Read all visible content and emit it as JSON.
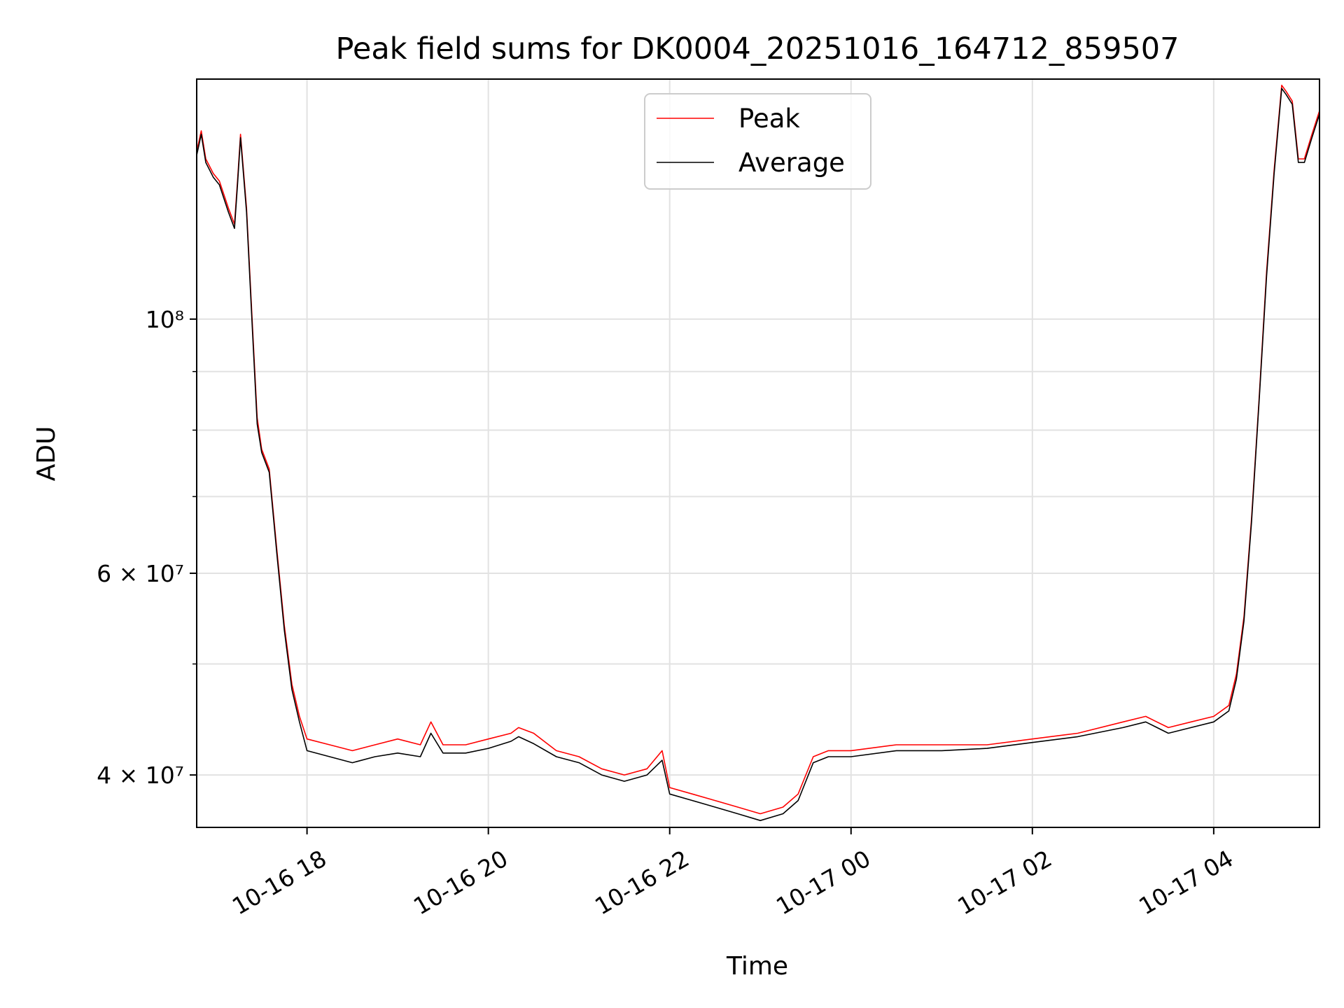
{
  "chart_data": {
    "type": "line",
    "title": "Peak field sums for DK0004_20251016_164712_859507",
    "xlabel": "Time",
    "ylabel": "ADU",
    "x_axis": {
      "type": "datetime",
      "range": [
        "2025-10-16 16:47",
        "2025-10-17 05:10"
      ],
      "ticks": [
        {
          "value": "2025-10-16 18:00",
          "label": "10-16 18"
        },
        {
          "value": "2025-10-16 20:00",
          "label": "10-16 20"
        },
        {
          "value": "2025-10-16 22:00",
          "label": "10-16 22"
        },
        {
          "value": "2025-10-17 00:00",
          "label": "10-17 00"
        },
        {
          "value": "2025-10-17 02:00",
          "label": "10-17 02"
        },
        {
          "value": "2025-10-17 04:00",
          "label": "10-17 04"
        }
      ]
    },
    "y_axis": {
      "scale": "log",
      "range": [
        36000000,
        162000000
      ],
      "ticks": [
        {
          "value": 40000000,
          "label": "4 × 10⁷"
        },
        {
          "value": 60000000,
          "label": "6 × 10⁷"
        },
        {
          "value": 100000000,
          "label": "10⁸"
        }
      ],
      "minor_ticks": [
        50000000,
        70000000,
        80000000,
        90000000
      ]
    },
    "grid": true,
    "legend": {
      "placement": "upper center"
    },
    "series": [
      {
        "name": "Peak",
        "color": "#ff0000",
        "x": [
          "2025-10-16 16:47",
          "2025-10-16 16:50",
          "2025-10-16 16:53",
          "2025-10-16 16:58",
          "2025-10-16 17:02",
          "2025-10-16 17:08",
          "2025-10-16 17:12",
          "2025-10-16 17:14",
          "2025-10-16 17:16",
          "2025-10-16 17:20",
          "2025-10-16 17:24",
          "2025-10-16 17:27",
          "2025-10-16 17:30",
          "2025-10-16 17:35",
          "2025-10-16 17:40",
          "2025-10-16 17:45",
          "2025-10-16 17:50",
          "2025-10-16 17:55",
          "2025-10-16 18:00",
          "2025-10-16 18:15",
          "2025-10-16 18:30",
          "2025-10-16 18:45",
          "2025-10-16 19:00",
          "2025-10-16 19:15",
          "2025-10-16 19:22",
          "2025-10-16 19:30",
          "2025-10-16 19:45",
          "2025-10-16 20:00",
          "2025-10-16 20:15",
          "2025-10-16 20:20",
          "2025-10-16 20:30",
          "2025-10-16 20:45",
          "2025-10-16 21:00",
          "2025-10-16 21:15",
          "2025-10-16 21:30",
          "2025-10-16 21:45",
          "2025-10-16 21:55",
          "2025-10-16 22:00",
          "2025-10-16 22:15",
          "2025-10-16 22:30",
          "2025-10-16 22:45",
          "2025-10-16 23:00",
          "2025-10-16 23:15",
          "2025-10-16 23:25",
          "2025-10-16 23:35",
          "2025-10-16 23:45",
          "2025-10-17 00:00",
          "2025-10-17 00:30",
          "2025-10-17 01:00",
          "2025-10-17 01:30",
          "2025-10-17 02:00",
          "2025-10-17 02:30",
          "2025-10-17 03:00",
          "2025-10-17 03:15",
          "2025-10-17 03:30",
          "2025-10-17 03:45",
          "2025-10-17 04:00",
          "2025-10-17 04:10",
          "2025-10-17 04:15",
          "2025-10-17 04:20",
          "2025-10-17 04:25",
          "2025-10-17 04:30",
          "2025-10-17 04:35",
          "2025-10-17 04:40",
          "2025-10-17 04:45",
          "2025-10-17 04:48",
          "2025-10-17 04:52",
          "2025-10-17 04:56",
          "2025-10-17 05:00",
          "2025-10-17 05:05",
          "2025-10-17 05:10"
        ],
        "y": [
          140000000,
          146000000,
          138000000,
          134000000,
          132000000,
          125000000,
          121000000,
          132000000,
          145000000,
          125000000,
          98000000,
          82000000,
          77000000,
          74000000,
          63000000,
          54000000,
          48000000,
          45000000,
          43000000,
          42500000,
          42000000,
          42500000,
          43000000,
          42500000,
          44500000,
          42500000,
          42500000,
          43000000,
          43500000,
          44000000,
          43500000,
          42000000,
          41500000,
          40500000,
          40000000,
          40500000,
          42000000,
          39000000,
          38500000,
          38000000,
          37500000,
          37000000,
          37500000,
          38500000,
          41500000,
          42000000,
          42000000,
          42500000,
          42500000,
          42500000,
          43000000,
          43500000,
          44500000,
          45000000,
          44000000,
          44500000,
          45000000,
          46000000,
          49000000,
          55000000,
          67000000,
          85000000,
          110000000,
          135000000,
          160000000,
          158000000,
          155000000,
          138000000,
          138000000,
          145000000,
          152000000
        ]
      },
      {
        "name": "Average",
        "color": "#000000",
        "x": [
          "2025-10-16 16:47",
          "2025-10-16 16:50",
          "2025-10-16 16:53",
          "2025-10-16 16:58",
          "2025-10-16 17:02",
          "2025-10-16 17:08",
          "2025-10-16 17:12",
          "2025-10-16 17:14",
          "2025-10-16 17:16",
          "2025-10-16 17:20",
          "2025-10-16 17:24",
          "2025-10-16 17:27",
          "2025-10-16 17:30",
          "2025-10-16 17:35",
          "2025-10-16 17:40",
          "2025-10-16 17:45",
          "2025-10-16 17:50",
          "2025-10-16 17:55",
          "2025-10-16 18:00",
          "2025-10-16 18:15",
          "2025-10-16 18:30",
          "2025-10-16 18:45",
          "2025-10-16 19:00",
          "2025-10-16 19:15",
          "2025-10-16 19:22",
          "2025-10-16 19:30",
          "2025-10-16 19:45",
          "2025-10-16 20:00",
          "2025-10-16 20:15",
          "2025-10-16 20:20",
          "2025-10-16 20:30",
          "2025-10-16 20:45",
          "2025-10-16 21:00",
          "2025-10-16 21:15",
          "2025-10-16 21:30",
          "2025-10-16 21:45",
          "2025-10-16 21:55",
          "2025-10-16 22:00",
          "2025-10-16 22:15",
          "2025-10-16 22:30",
          "2025-10-16 22:45",
          "2025-10-16 23:00",
          "2025-10-16 23:15",
          "2025-10-16 23:25",
          "2025-10-16 23:35",
          "2025-10-16 23:45",
          "2025-10-17 00:00",
          "2025-10-17 00:30",
          "2025-10-17 01:00",
          "2025-10-17 01:30",
          "2025-10-17 02:00",
          "2025-10-17 02:30",
          "2025-10-17 03:00",
          "2025-10-17 03:15",
          "2025-10-17 03:30",
          "2025-10-17 03:45",
          "2025-10-17 04:00",
          "2025-10-17 04:10",
          "2025-10-17 04:15",
          "2025-10-17 04:20",
          "2025-10-17 04:25",
          "2025-10-17 04:30",
          "2025-10-17 04:35",
          "2025-10-17 04:40",
          "2025-10-17 04:45",
          "2025-10-17 04:48",
          "2025-10-17 04:52",
          "2025-10-17 04:56",
          "2025-10-17 05:00",
          "2025-10-17 05:05",
          "2025-10-17 05:10"
        ],
        "y": [
          139000000,
          145000000,
          137000000,
          133000000,
          131000000,
          124000000,
          120000000,
          131000000,
          144000000,
          124000000,
          97000000,
          81000000,
          76500000,
          73500000,
          62500000,
          53500000,
          47500000,
          44500000,
          42000000,
          41500000,
          41000000,
          41500000,
          41800000,
          41500000,
          43500000,
          41800000,
          41800000,
          42200000,
          42800000,
          43200000,
          42600000,
          41500000,
          41000000,
          40000000,
          39500000,
          40000000,
          41200000,
          38500000,
          38000000,
          37500000,
          37000000,
          36500000,
          37000000,
          38000000,
          41000000,
          41500000,
          41500000,
          42000000,
          42000000,
          42200000,
          42700000,
          43200000,
          44000000,
          44500000,
          43500000,
          44000000,
          44500000,
          45500000,
          48500000,
          54500000,
          66500000,
          84500000,
          109000000,
          134000000,
          159000000,
          157000000,
          154000000,
          137000000,
          137000000,
          144000000,
          151000000
        ]
      }
    ]
  }
}
